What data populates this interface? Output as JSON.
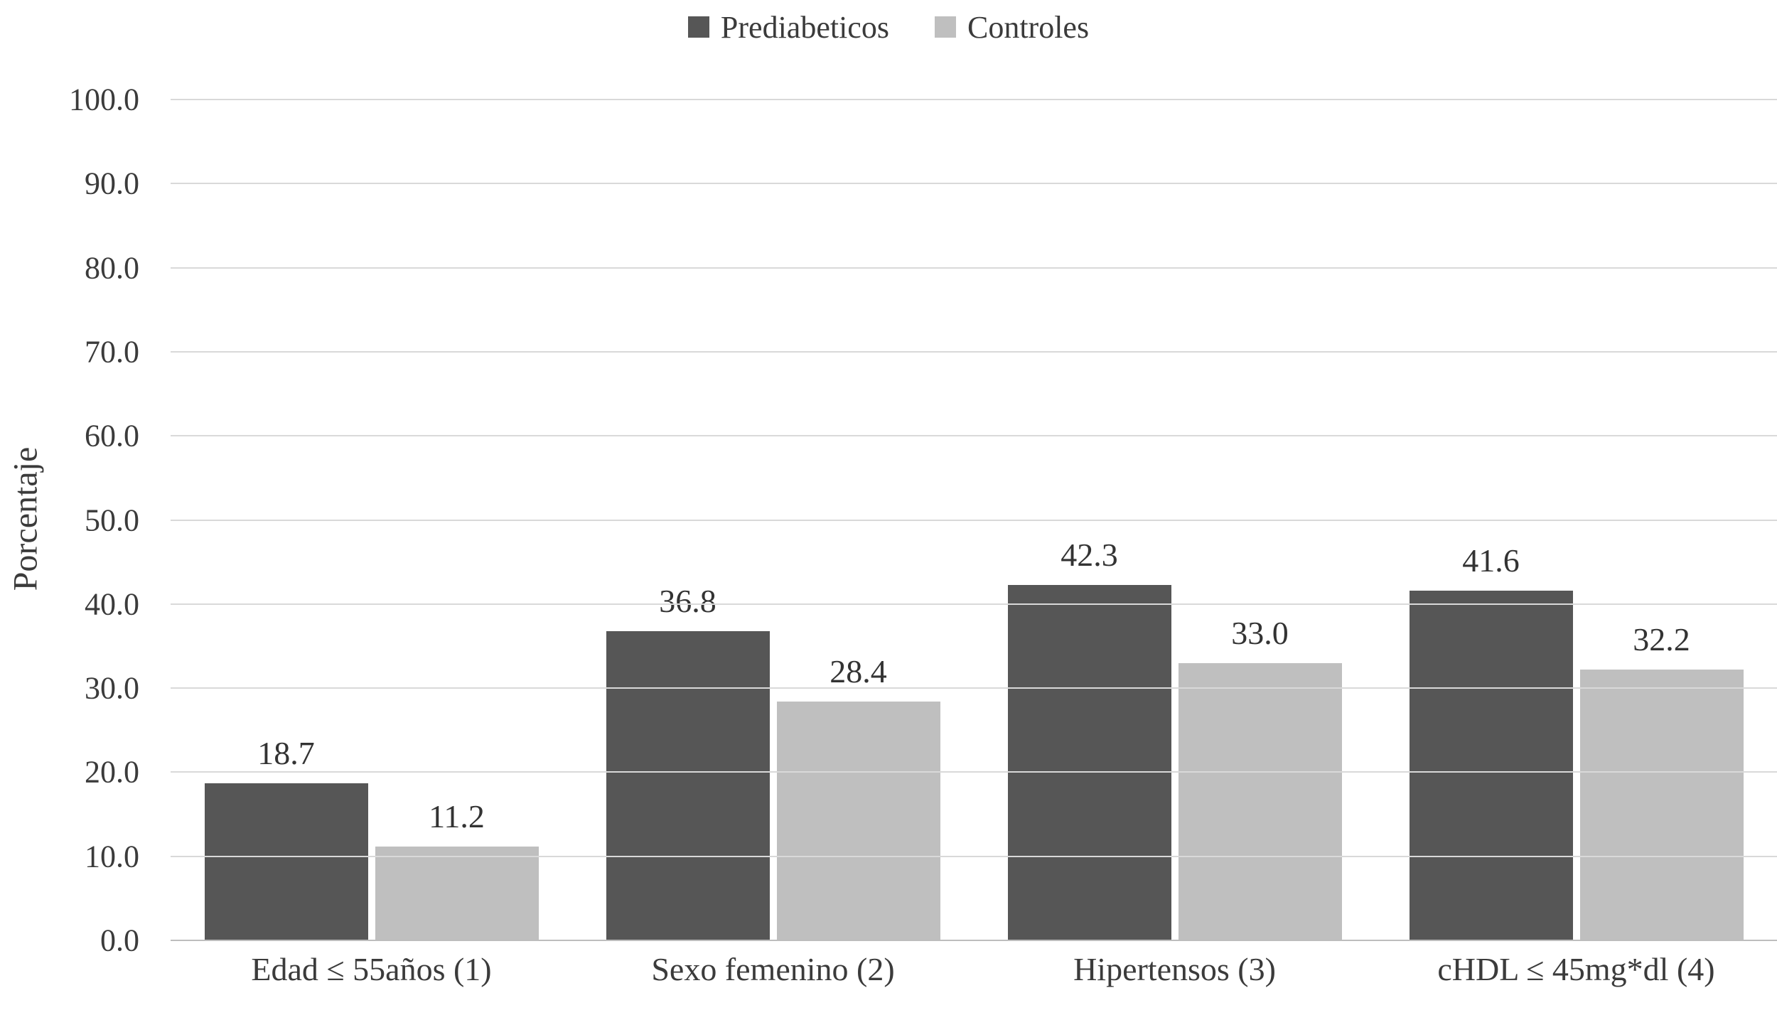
{
  "chart_data": {
    "type": "bar",
    "title": "",
    "categories": [
      "Edad ≤ 55años (1)",
      "Sexo femenino (2)",
      "Hipertensos (3)",
      "cHDL ≤ 45mg*dl (4)"
    ],
    "series": [
      {
        "name": "Prediabeticos",
        "color": "#565656",
        "values": [
          18.7,
          36.8,
          42.3,
          41.6
        ]
      },
      {
        "name": "Controles",
        "color": "#bfbfbf",
        "values": [
          11.2,
          28.4,
          33.0,
          32.2
        ]
      }
    ],
    "xlabel": "",
    "ylabel": "Porcentaje",
    "ylim": [
      0,
      100
    ],
    "ytick_step": 10,
    "ytick_decimals": 1,
    "value_label_decimals": 1,
    "grid": true,
    "legend_position": "top",
    "colors": {
      "gridline": "#d9d9d9",
      "axis_line": "#bdbdbd",
      "text": "#3b3b3b"
    }
  }
}
